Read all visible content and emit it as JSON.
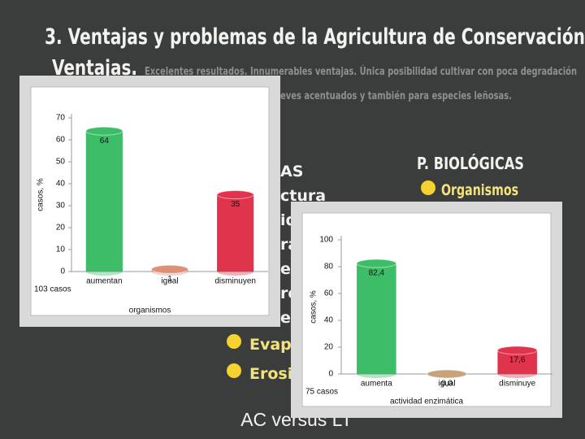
{
  "slide": {
    "title": "3. Ventajas y problemas de la Agricultura de Conservación",
    "lead": "Ventajas.",
    "lead_text": "Excelentes resultados. Innumerables ventajas. Única posibilidad cultivar con poca degradación",
    "line2": "eves acentuados y también para especies leñosas.",
    "left_items": [
      "AS",
      "ctura",
      "id",
      "ra",
      "ec",
      "re",
      "e"
    ],
    "bottom_items": [
      "Evapot",
      "Erosión"
    ],
    "right_heading": "P. BIOLÓGICAS",
    "right_item": "Organismos",
    "footer": "AC versus LT"
  },
  "chart_data": [
    {
      "type": "bar",
      "categories": [
        "aumentan",
        "igual",
        "disminuyen"
      ],
      "values": [
        64,
        1,
        35
      ],
      "colors": [
        "#3dbd68",
        "#dd8f78",
        "#e0334c"
      ],
      "y_label": "casos,  %",
      "x_label": "organismos",
      "note": "103 casos",
      "ylim": [
        0,
        70
      ],
      "yticks": [
        0,
        10,
        20,
        30,
        40,
        50,
        60,
        70
      ]
    },
    {
      "type": "bar",
      "categories": [
        "aumenta",
        "igual",
        "disminuye"
      ],
      "values": [
        82.4,
        0,
        17.6
      ],
      "value_labels": [
        "82,4",
        "0,0",
        "17,6"
      ],
      "colors": [
        "#3dbd68",
        "#c8a27a",
        "#e0334c"
      ],
      "y_label": "casos,  %",
      "x_label": "actividad enzimática",
      "note": "75 casos",
      "ylim": [
        0,
        100
      ],
      "yticks": [
        0,
        20,
        40,
        60,
        80,
        100
      ]
    }
  ]
}
